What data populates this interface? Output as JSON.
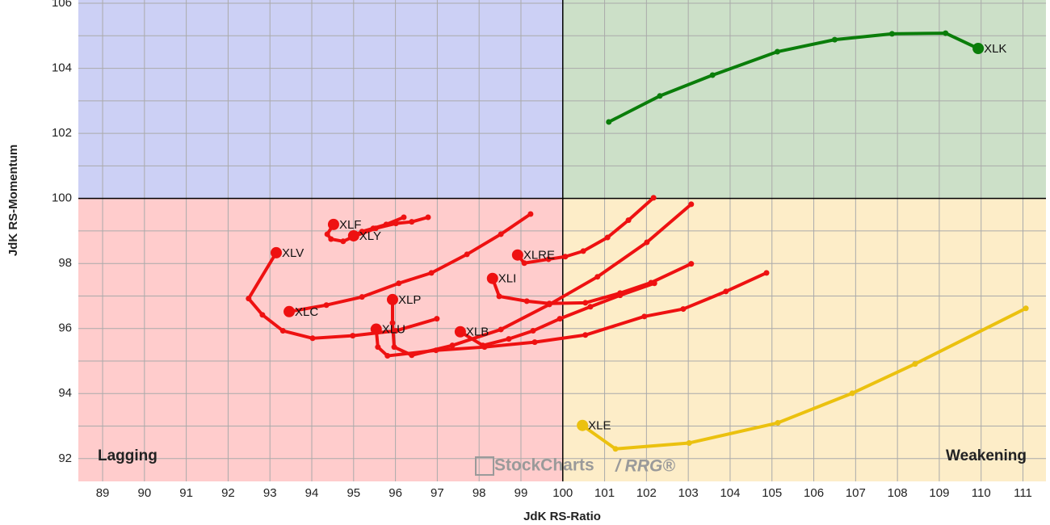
{
  "chart_data": {
    "type": "rrg",
    "x_label": "JdK RS-Ratio",
    "y_label": "JdK RS-Momentum",
    "xlim": [
      88.42,
      111.55
    ],
    "ylim": [
      91.3,
      106.1
    ],
    "xticks": [
      89,
      90,
      91,
      92,
      93,
      94,
      95,
      96,
      97,
      98,
      99,
      100,
      101,
      102,
      103,
      104,
      105,
      106,
      107,
      108,
      109,
      110,
      111
    ],
    "yticks": [
      92,
      94,
      96,
      98,
      100,
      102,
      104,
      106
    ],
    "yminorticks": [
      93,
      95,
      97,
      99,
      101,
      103,
      105
    ],
    "grid": true,
    "center": [
      100,
      100
    ],
    "quadrant_colors": {
      "top_left": "#ccd0f5",
      "top_right": "#cce0c8",
      "bottom_left": "#ffcccc",
      "bottom_right": "#fdedc8"
    },
    "annotations": [
      {
        "text": "Lagging",
        "color": "#ee1111",
        "corner": "bottom-left"
      },
      {
        "text": "Weakening",
        "color": "#ebc10f",
        "corner": "bottom-right"
      }
    ],
    "watermark": [
      "StockCharts",
      "/ RRG®"
    ],
    "series": [
      {
        "name": "XLK",
        "color": "#0a7d0a",
        "x": [
          101.1,
          102.32,
          103.58,
          105.13,
          106.5,
          107.87,
          109.15,
          109.93
        ],
        "y": [
          102.35,
          103.15,
          103.79,
          104.51,
          104.88,
          105.06,
          105.08,
          104.61
        ]
      },
      {
        "name": "XLE",
        "color": "#ebc10f",
        "x": [
          111.07,
          108.42,
          106.92,
          105.14,
          103.02,
          101.26,
          100.47
        ],
        "y": [
          96.62,
          94.91,
          94.01,
          93.1,
          92.48,
          92.3,
          93.02
        ]
      },
      {
        "name": "XLF",
        "color": "#ee1111",
        "x": [
          96.78,
          96.39,
          96.01,
          95.53,
          95.04,
          94.75,
          94.46,
          94.37,
          94.52
        ],
        "y": [
          99.42,
          99.28,
          99.23,
          99.08,
          98.85,
          98.68,
          98.75,
          98.9,
          99.2
        ]
      },
      {
        "name": "XLY",
        "color": "#ee1111",
        "x": [
          96.2,
          95.78,
          95.47,
          95.2,
          95.0
        ],
        "y": [
          99.42,
          99.2,
          99.08,
          98.98,
          98.85
        ]
      },
      {
        "name": "XLV",
        "color": "#ee1111",
        "x": [
          96.99,
          96.01,
          94.98,
          94.02,
          93.31,
          92.82,
          92.49,
          93.15
        ],
        "y": [
          96.3,
          95.93,
          95.78,
          95.7,
          95.93,
          96.42,
          96.92,
          98.33
        ]
      },
      {
        "name": "XLC",
        "color": "#ee1111",
        "x": [
          99.23,
          98.52,
          97.71,
          96.86,
          96.08,
          95.2,
          94.35,
          93.46
        ],
        "y": [
          99.52,
          98.9,
          98.28,
          97.71,
          97.39,
          96.97,
          96.72,
          96.52
        ]
      },
      {
        "name": "XLRE",
        "color": "#ee1111",
        "x": [
          102.17,
          101.57,
          101.07,
          100.49,
          100.06,
          99.66,
          99.08,
          98.92
        ],
        "y": [
          100.02,
          99.33,
          98.8,
          98.38,
          98.21,
          98.13,
          98.01,
          98.26
        ]
      },
      {
        "name": "XLI",
        "color": "#ee1111",
        "x": [
          103.07,
          102.11,
          101.37,
          100.54,
          99.68,
          99.14,
          98.48,
          98.32
        ],
        "y": [
          97.99,
          97.41,
          97.09,
          96.79,
          96.77,
          96.84,
          96.99,
          97.54
        ]
      },
      {
        "name": "XLP",
        "color": "#ee1111",
        "x": [
          103.07,
          102.01,
          100.83,
          99.68,
          98.52,
          97.36,
          96.39,
          95.97,
          95.93,
          95.93
        ],
        "y": [
          99.82,
          98.65,
          97.59,
          96.74,
          95.97,
          95.48,
          95.18,
          95.43,
          96.17,
          96.89
        ]
      },
      {
        "name": "XLU",
        "color": "#ee1111",
        "x": [
          104.87,
          103.9,
          102.88,
          101.95,
          100.54,
          99.33,
          98.13,
          96.97,
          95.81,
          95.58,
          95.54
        ],
        "y": [
          97.71,
          97.14,
          96.6,
          96.37,
          95.8,
          95.58,
          95.43,
          95.33,
          95.16,
          95.43,
          95.98
        ]
      },
      {
        "name": "XLB",
        "color": "#ee1111",
        "x": [
          102.19,
          101.37,
          100.66,
          99.93,
          99.29,
          98.71,
          98.09,
          97.55
        ],
        "y": [
          97.39,
          97.02,
          96.67,
          96.3,
          95.93,
          95.68,
          95.48,
          95.9
        ]
      }
    ]
  }
}
